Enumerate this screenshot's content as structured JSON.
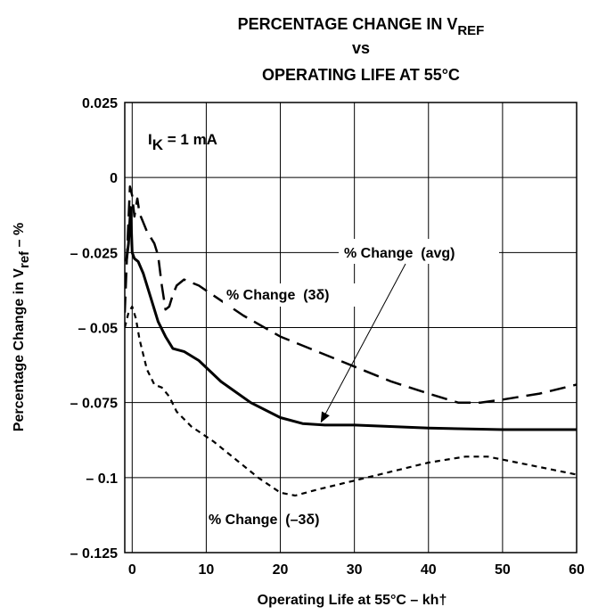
{
  "chart_data": {
    "type": "line",
    "title": {
      "line1": {
        "text": "PERCENTAGE CHANGE IN V",
        "sub": "REF"
      },
      "line2": "vs",
      "line3": "OPERATING LIFE AT 55°C"
    },
    "xlabel": "Operating Life at 55°C – kh†",
    "ylabel": {
      "text": "Percentage Change in V",
      "sub": "ref",
      "suffix": " – %"
    },
    "xlim": [
      -1,
      60
    ],
    "ylim": [
      -0.125,
      0.025
    ],
    "x_ticks": [
      {
        "value": 0,
        "label": "0"
      },
      {
        "value": 10,
        "label": "10"
      },
      {
        "value": 20,
        "label": "20"
      },
      {
        "value": 30,
        "label": "30"
      },
      {
        "value": 40,
        "label": "40"
      },
      {
        "value": 50,
        "label": "50"
      },
      {
        "value": 60,
        "label": "60"
      }
    ],
    "y_ticks": [
      {
        "value": 0.025,
        "label": "0.025"
      },
      {
        "value": 0,
        "label": "0"
      },
      {
        "value": -0.025,
        "label": "– 0.025"
      },
      {
        "value": -0.05,
        "label": "– 0.05"
      },
      {
        "value": -0.075,
        "label": "– 0.075"
      },
      {
        "value": -0.1,
        "label": "– 0.1"
      },
      {
        "value": -0.125,
        "label": "– 0.125"
      }
    ],
    "grid": true,
    "condition": {
      "text": "I",
      "sub": "K",
      "suffix": " = 1 mA"
    },
    "series": [
      {
        "name": "% Change (3δ)",
        "style": "long-dash",
        "points": [
          [
            -1,
            -0.045
          ],
          [
            -0.6,
            -0.02
          ],
          [
            -0.3,
            -0.003
          ],
          [
            0,
            -0.006
          ],
          [
            0.3,
            -0.013
          ],
          [
            0.7,
            -0.007
          ],
          [
            1,
            -0.012
          ],
          [
            1.5,
            -0.015
          ],
          [
            2,
            -0.018
          ],
          [
            2.5,
            -0.02
          ],
          [
            3,
            -0.022
          ],
          [
            3.5,
            -0.026
          ],
          [
            4,
            -0.036
          ],
          [
            4.5,
            -0.044
          ],
          [
            5,
            -0.043
          ],
          [
            5.5,
            -0.039
          ],
          [
            6,
            -0.036
          ],
          [
            7,
            -0.034
          ],
          [
            9,
            -0.036
          ],
          [
            12,
            -0.041
          ],
          [
            15,
            -0.046
          ],
          [
            20,
            -0.053
          ],
          [
            25,
            -0.058
          ],
          [
            30,
            -0.063
          ],
          [
            35,
            -0.068
          ],
          [
            40,
            -0.072
          ],
          [
            44,
            -0.075
          ],
          [
            47,
            -0.075
          ],
          [
            50,
            -0.074
          ],
          [
            55,
            -0.072
          ],
          [
            60,
            -0.069
          ]
        ]
      },
      {
        "name": "% Change (avg)",
        "style": "solid",
        "points": [
          [
            -0.8,
            -0.028
          ],
          [
            -0.5,
            -0.022
          ],
          [
            -0.2,
            -0.01
          ],
          [
            0,
            -0.025
          ],
          [
            0.3,
            -0.027
          ],
          [
            0.8,
            -0.028
          ],
          [
            1.5,
            -0.032
          ],
          [
            2.5,
            -0.04
          ],
          [
            3.5,
            -0.048
          ],
          [
            4.5,
            -0.053
          ],
          [
            5.5,
            -0.057
          ],
          [
            7,
            -0.058
          ],
          [
            9,
            -0.061
          ],
          [
            12,
            -0.068
          ],
          [
            16,
            -0.075
          ],
          [
            20,
            -0.08
          ],
          [
            23,
            -0.082
          ],
          [
            26,
            -0.0825
          ],
          [
            30,
            -0.0825
          ],
          [
            40,
            -0.0835
          ],
          [
            50,
            -0.084
          ],
          [
            60,
            -0.084
          ]
        ]
      },
      {
        "name": "% Change (–3δ)",
        "style": "short-dash",
        "points": [
          [
            -1,
            -0.05
          ],
          [
            -0.5,
            -0.045
          ],
          [
            0,
            -0.043
          ],
          [
            0.5,
            -0.047
          ],
          [
            1,
            -0.054
          ],
          [
            2,
            -0.064
          ],
          [
            3,
            -0.069
          ],
          [
            4,
            -0.07
          ],
          [
            5,
            -0.073
          ],
          [
            6,
            -0.078
          ],
          [
            8,
            -0.083
          ],
          [
            11,
            -0.088
          ],
          [
            14,
            -0.094
          ],
          [
            17,
            -0.1
          ],
          [
            20,
            -0.105
          ],
          [
            22,
            -0.106
          ],
          [
            25,
            -0.104
          ],
          [
            30,
            -0.101
          ],
          [
            35,
            -0.098
          ],
          [
            40,
            -0.095
          ],
          [
            45,
            -0.093
          ],
          [
            48,
            -0.093
          ],
          [
            52,
            -0.095
          ],
          [
            56,
            -0.097
          ],
          [
            60,
            -0.099
          ]
        ]
      }
    ],
    "annotations": [
      {
        "text": "% Change  (avg)",
        "series": "% Change (avg)",
        "arrow_to": [
          25.5,
          -0.0815
        ]
      },
      {
        "text": "% Change  (3δ)",
        "series": "% Change (3δ)"
      },
      {
        "text": "% Change  (–3δ)",
        "series": "% Change (–3δ)"
      }
    ],
    "colors": {
      "line": "#000000",
      "grid": "#000000",
      "background": "#ffffff"
    }
  }
}
